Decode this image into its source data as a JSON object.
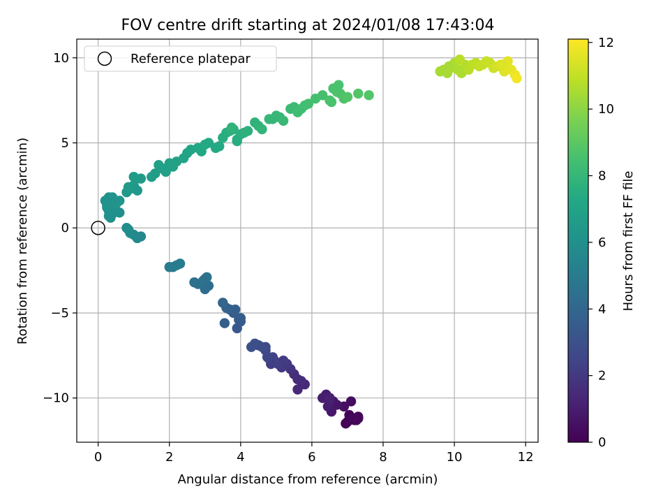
{
  "chart_data": {
    "type": "scatter",
    "title": "FOV centre drift starting at 2024/01/08 17:43:04",
    "xlabel": "Angular distance from reference (arcmin)",
    "ylabel": "Rotation from reference (arcmin)",
    "xlim": [
      -0.6,
      12.35
    ],
    "ylim": [
      -12.6,
      11.1
    ],
    "xticks": [
      0,
      2,
      4,
      6,
      8,
      10,
      12
    ],
    "yticks": [
      10,
      5,
      0,
      -5,
      -10
    ],
    "xtick_labels": [
      "0",
      "2",
      "4",
      "6",
      "8",
      "10",
      "12"
    ],
    "ytick_labels": [
      "10",
      "5",
      "0",
      "−5",
      "−10"
    ],
    "grid": true,
    "legend": {
      "position": "top-left",
      "entries": [
        {
          "label": "Reference platepar",
          "marker": "open-circle",
          "color": "#000000"
        }
      ]
    },
    "reference_point": {
      "x": 0,
      "y": 0
    },
    "colorbar": {
      "label": "Hours from first FF file",
      "range": [
        0,
        12.1
      ],
      "ticks": [
        0,
        2,
        4,
        6,
        8,
        10,
        12
      ],
      "tick_labels": [
        "0",
        "2",
        "4",
        "6",
        "8",
        "10",
        "12"
      ],
      "colormap": "viridis"
    },
    "x": [
      7.0,
      7.1,
      7.2,
      7.3,
      7.05,
      6.95,
      7.15,
      7.25,
      6.9,
      7.3,
      7.1,
      6.6,
      6.7,
      6.5,
      6.4,
      6.3,
      6.55,
      6.45,
      6.5,
      6.5,
      5.8,
      5.6,
      5.5,
      5.7,
      5.4,
      5.6,
      5.3,
      5.2,
      5.15,
      5.05,
      5.0,
      4.95,
      4.9,
      4.8,
      4.85,
      4.75,
      4.7,
      4.7,
      4.6,
      4.5,
      4.4,
      4.3,
      4.0,
      4.0,
      3.9,
      3.95,
      3.85,
      3.8,
      3.6,
      3.5,
      3.7,
      3.55,
      3.0,
      3.1,
      2.9,
      3.05,
      2.95,
      3.0,
      2.8,
      2.7,
      2.3,
      2.2,
      2.1,
      2.0,
      1.2,
      1.1,
      1.0,
      0.9,
      0.85,
      0.8,
      0.3,
      0.4,
      0.25,
      0.2,
      0.3,
      0.35,
      0.45,
      0.3,
      0.25,
      0.5,
      0.6,
      0.4,
      0.35,
      0.6,
      0.8,
      0.9,
      1.0,
      1.1,
      1.2,
      1.0,
      0.85,
      1.5,
      1.6,
      1.8,
      1.9,
      2.0,
      2.1,
      2.2,
      1.7,
      2.4,
      2.5,
      2.6,
      2.8,
      2.9,
      3.0,
      3.1,
      3.3,
      3.4,
      3.6,
      3.5,
      3.7,
      3.8,
      3.9,
      4.0,
      4.1,
      4.2,
      3.9,
      3.75,
      4.4,
      4.5,
      4.6,
      4.8,
      5.0,
      5.1,
      5.2,
      4.9,
      5.4,
      5.5,
      5.6,
      5.7,
      5.8,
      5.9,
      6.1,
      6.3,
      6.5,
      6.7,
      6.6,
      6.8,
      6.9,
      7.0,
      6.55,
      7.3,
      7.6,
      6.75,
      9.6,
      9.7,
      9.8,
      9.9,
      10.0,
      10.1,
      10.2,
      10.3,
      10.0,
      9.85,
      10.4,
      10.5,
      10.6,
      10.7,
      10.8,
      10.9,
      11.0,
      11.1,
      11.2,
      11.3,
      11.5,
      11.6,
      11.7,
      11.75,
      11.4,
      11.5,
      11.35,
      10.15
    ],
    "y": [
      -11.4,
      -11.2,
      -11.3,
      -11.1,
      -11.0,
      -11.5,
      -11.2,
      -11.3,
      -10.5,
      -11.2,
      -10.2,
      -10.2,
      -10.4,
      -10.0,
      -9.8,
      -10.0,
      -10.8,
      -10.5,
      -10.2,
      -10.0,
      -9.2,
      -8.9,
      -8.6,
      -9.0,
      -8.3,
      -9.5,
      -8.0,
      -7.8,
      -8.2,
      -8.0,
      -7.9,
      -7.8,
      -7.6,
      -7.7,
      -8.0,
      -7.6,
      -7.2,
      -7.0,
      -7.0,
      -6.9,
      -6.8,
      -7.0,
      -5.5,
      -5.3,
      -5.9,
      -5.4,
      -4.8,
      -5.0,
      -4.7,
      -4.4,
      -4.8,
      -5.6,
      -3.0,
      -3.4,
      -3.3,
      -2.9,
      -3.1,
      -3.6,
      -3.3,
      -3.2,
      -2.1,
      -2.2,
      -2.3,
      -2.3,
      -0.5,
      -0.6,
      -0.4,
      -0.3,
      -0.1,
      0.0,
      0.7,
      1.1,
      1.3,
      1.6,
      1.0,
      0.6,
      0.9,
      1.8,
      1.2,
      1.4,
      1.6,
      1.8,
      1.5,
      0.9,
      2.1,
      2.3,
      2.5,
      2.2,
      2.9,
      3.0,
      2.4,
      3.0,
      3.2,
      3.5,
      3.3,
      3.8,
      3.6,
      3.9,
      3.7,
      4.1,
      4.4,
      4.6,
      4.7,
      4.5,
      4.9,
      5.0,
      4.7,
      4.8,
      5.6,
      5.3,
      5.7,
      5.8,
      5.2,
      5.5,
      5.6,
      5.7,
      5.1,
      5.9,
      6.2,
      6.0,
      5.8,
      6.4,
      6.6,
      6.5,
      6.3,
      6.4,
      7.0,
      7.1,
      6.8,
      7.0,
      7.2,
      7.3,
      7.6,
      7.8,
      7.5,
      8.0,
      8.2,
      7.9,
      7.6,
      7.7,
      7.4,
      7.9,
      7.8,
      8.4,
      9.2,
      9.3,
      9.1,
      9.4,
      9.5,
      9.3,
      9.1,
      9.6,
      9.7,
      9.5,
      9.3,
      9.6,
      9.7,
      9.5,
      9.6,
      9.8,
      9.7,
      9.4,
      9.5,
      9.6,
      9.8,
      9.3,
      9.0,
      8.8,
      9.2,
      9.4,
      9.6,
      9.9
    ],
    "c": [
      0.1,
      0.1,
      0.15,
      0.2,
      0.1,
      0.05,
      0.25,
      0.2,
      0.5,
      0.25,
      0.4,
      0.6,
      0.7,
      0.7,
      0.9,
      1.0,
      0.8,
      0.9,
      1.0,
      1.1,
      1.4,
      1.5,
      1.6,
      1.5,
      1.8,
      1.4,
      2.0,
      2.1,
      2.0,
      2.2,
      2.2,
      2.3,
      2.4,
      2.3,
      2.2,
      2.5,
      2.6,
      2.7,
      2.8,
      2.8,
      2.9,
      2.9,
      3.4,
      3.5,
      3.3,
      3.5,
      3.7,
      3.6,
      3.8,
      3.9,
      3.7,
      3.6,
      4.4,
      4.3,
      4.4,
      4.6,
      4.5,
      4.3,
      4.5,
      4.5,
      5.0,
      5.0,
      5.0,
      5.0,
      5.6,
      5.6,
      5.7,
      5.7,
      5.8,
      5.8,
      6.0,
      6.0,
      6.1,
      6.1,
      6.0,
      6.0,
      6.0,
      6.1,
      6.1,
      6.2,
      6.2,
      6.2,
      6.1,
      6.0,
      6.4,
      6.5,
      6.5,
      6.4,
      6.6,
      6.6,
      6.5,
      6.7,
      6.7,
      6.8,
      6.8,
      6.8,
      6.9,
      6.9,
      6.8,
      7.0,
      7.0,
      7.1,
      7.2,
      7.2,
      7.3,
      7.3,
      7.3,
      7.3,
      7.5,
      7.5,
      7.6,
      7.6,
      7.5,
      7.6,
      7.7,
      7.7,
      7.5,
      7.8,
      7.8,
      7.8,
      7.9,
      8.0,
      8.0,
      8.0,
      8.1,
      8.0,
      8.2,
      8.2,
      8.3,
      8.3,
      8.4,
      8.4,
      8.5,
      8.5,
      8.6,
      8.7,
      8.6,
      8.7,
      8.7,
      8.8,
      8.6,
      8.8,
      8.8,
      8.6,
      10.5,
      10.5,
      10.5,
      10.6,
      10.6,
      10.6,
      10.6,
      10.7,
      10.6,
      10.5,
      10.8,
      10.9,
      10.9,
      11.0,
      11.0,
      11.1,
      11.1,
      11.2,
      11.3,
      11.4,
      11.6,
      11.7,
      11.8,
      11.9,
      11.5,
      11.6,
      11.5,
      10.8
    ]
  }
}
